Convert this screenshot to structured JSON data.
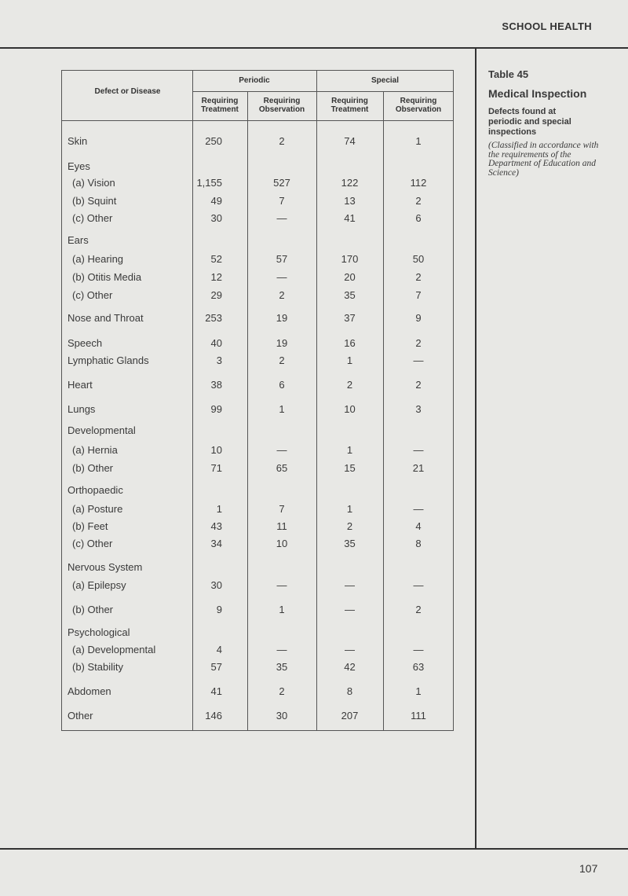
{
  "running_head": "SCHOOL HEALTH",
  "page_number": "107",
  "sidebar": {
    "table_number": "Table 45",
    "title": "Medical Inspection",
    "subtitle": "Defects found at periodic and special inspections",
    "note": "(Classified in accordance with the requirements of the Department of Education and Science)"
  },
  "table": {
    "header": {
      "defect": "Defect or Disease",
      "periodic": "Periodic",
      "special": "Special",
      "p_treatment": "Requiring Treatment",
      "p_observation": "Requiring Observation",
      "s_treatment": "Requiring Treatment",
      "s_observation": "Requiring Observation"
    },
    "rows": [
      {
        "label": "Skin",
        "values": [
          "250",
          "2",
          "74",
          "1"
        ]
      },
      {
        "label": "Eyes",
        "values": [
          "",
          "",
          "",
          ""
        ],
        "group": true
      },
      {
        "label": "(a) Vision",
        "values": [
          "1,155",
          "527",
          "122",
          "112"
        ],
        "sub": true
      },
      {
        "label": "(b) Squint",
        "values": [
          "49",
          "7",
          "13",
          "2"
        ],
        "sub": true
      },
      {
        "label": "(c) Other",
        "values": [
          "30",
          "—",
          "41",
          "6"
        ],
        "sub": true
      },
      {
        "label": "Ears",
        "values": [
          "",
          "",
          "",
          ""
        ],
        "group": true
      },
      {
        "label": "(a) Hearing",
        "values": [
          "52",
          "57",
          "170",
          "50"
        ],
        "sub": true
      },
      {
        "label": "(b) Otitis Media",
        "values": [
          "12",
          "—",
          "20",
          "2"
        ],
        "sub": true
      },
      {
        "label": "(c) Other",
        "values": [
          "29",
          "2",
          "35",
          "7"
        ],
        "sub": true
      },
      {
        "label": "Nose and Throat",
        "values": [
          "253",
          "19",
          "37",
          "9"
        ]
      },
      {
        "label": "Speech",
        "values": [
          "40",
          "19",
          "16",
          "2"
        ]
      },
      {
        "label": "Lymphatic Glands",
        "values": [
          "3",
          "2",
          "1",
          "—"
        ]
      },
      {
        "label": "Heart",
        "values": [
          "38",
          "6",
          "2",
          "2"
        ]
      },
      {
        "label": "Lungs",
        "values": [
          "99",
          "1",
          "10",
          "3"
        ]
      },
      {
        "label": "Developmental",
        "values": [
          "",
          "",
          "",
          ""
        ],
        "group": true
      },
      {
        "label": "(a) Hernia",
        "values": [
          "10",
          "—",
          "1",
          "—"
        ],
        "sub": true
      },
      {
        "label": "(b) Other",
        "values": [
          "71",
          "65",
          "15",
          "21"
        ],
        "sub": true
      },
      {
        "label": "Orthopaedic",
        "values": [
          "",
          "",
          "",
          ""
        ],
        "group": true
      },
      {
        "label": "(a) Posture",
        "values": [
          "1",
          "7",
          "1",
          "—"
        ],
        "sub": true
      },
      {
        "label": "(b) Feet",
        "values": [
          "43",
          "11",
          "2",
          "4"
        ],
        "sub": true
      },
      {
        "label": "(c) Other",
        "values": [
          "34",
          "10",
          "35",
          "8"
        ],
        "sub": true
      },
      {
        "label": "Nervous System",
        "values": [
          "",
          "",
          "",
          ""
        ],
        "group": true
      },
      {
        "label": "(a) Epilepsy",
        "values": [
          "30",
          "—",
          "—",
          "—"
        ],
        "sub": true
      },
      {
        "label": "(b) Other",
        "values": [
          "9",
          "1",
          "—",
          "2"
        ],
        "sub": true
      },
      {
        "label": "Psychological",
        "values": [
          "",
          "",
          "",
          ""
        ],
        "group": true
      },
      {
        "label": "(a) Developmental",
        "values": [
          "4",
          "—",
          "—",
          "—"
        ],
        "sub": true
      },
      {
        "label": "(b) Stability",
        "values": [
          "57",
          "35",
          "42",
          "63"
        ],
        "sub": true
      },
      {
        "label": "Abdomen",
        "values": [
          "41",
          "2",
          "8",
          "1"
        ]
      },
      {
        "label": "Other",
        "values": [
          "146",
          "30",
          "207",
          "111"
        ]
      }
    ]
  }
}
